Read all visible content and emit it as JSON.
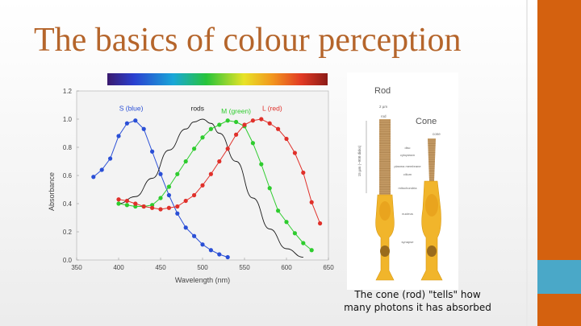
{
  "slide": {
    "title": "The basics of colour perception",
    "caption_line1": "The cone (rod) \"tells\" how",
    "caption_line2": "many photons it has absorbed"
  },
  "colors": {
    "title": "#b5652b",
    "accent_orange": "#d4610f",
    "accent_teal": "#4aa8c8",
    "series_blue": "#2a4fd6",
    "series_green": "#2ecc2e",
    "series_red": "#e0302a",
    "series_black": "#1a1a1a"
  },
  "chart_data": {
    "type": "line",
    "xlabel": "Wavelength (nm)",
    "ylabel": "Absorbance",
    "xlim": [
      350,
      650
    ],
    "ylim": [
      0,
      1.2
    ],
    "x_ticks": [
      350,
      400,
      450,
      500,
      550,
      600,
      650
    ],
    "y_ticks": [
      "0.0",
      "0.2",
      "0.4",
      "0.6",
      "0.8",
      "1.0",
      "1.2"
    ],
    "grid": false,
    "legend": "inline labels",
    "series": [
      {
        "name": "S (blue)",
        "color": "#2a4fd6",
        "points": [
          [
            370,
            0.59
          ],
          [
            380,
            0.64
          ],
          [
            390,
            0.72
          ],
          [
            400,
            0.88
          ],
          [
            410,
            0.97
          ],
          [
            420,
            0.99
          ],
          [
            430,
            0.93
          ],
          [
            440,
            0.77
          ],
          [
            450,
            0.61
          ],
          [
            460,
            0.46
          ],
          [
            470,
            0.33
          ],
          [
            480,
            0.23
          ],
          [
            490,
            0.17
          ],
          [
            500,
            0.11
          ],
          [
            510,
            0.07
          ],
          [
            520,
            0.04
          ],
          [
            530,
            0.02
          ]
        ]
      },
      {
        "name": "rods",
        "color": "#1a1a1a",
        "smooth": true,
        "points": [
          [
            400,
            0.4
          ],
          [
            420,
            0.45
          ],
          [
            440,
            0.58
          ],
          [
            460,
            0.78
          ],
          [
            480,
            0.93
          ],
          [
            490,
            0.98
          ],
          [
            500,
            1.0
          ],
          [
            510,
            0.97
          ],
          [
            520,
            0.9
          ],
          [
            540,
            0.7
          ],
          [
            560,
            0.44
          ],
          [
            580,
            0.22
          ],
          [
            600,
            0.08
          ],
          [
            620,
            0.02
          ]
        ]
      },
      {
        "name": "M (green)",
        "color": "#2ecc2e",
        "points": [
          [
            400,
            0.4
          ],
          [
            410,
            0.39
          ],
          [
            420,
            0.38
          ],
          [
            430,
            0.38
          ],
          [
            440,
            0.39
          ],
          [
            450,
            0.44
          ],
          [
            460,
            0.52
          ],
          [
            470,
            0.61
          ],
          [
            480,
            0.7
          ],
          [
            490,
            0.79
          ],
          [
            500,
            0.87
          ],
          [
            510,
            0.93
          ],
          [
            520,
            0.96
          ],
          [
            530,
            0.99
          ],
          [
            540,
            0.98
          ],
          [
            550,
            0.95
          ],
          [
            560,
            0.83
          ],
          [
            570,
            0.68
          ],
          [
            580,
            0.51
          ],
          [
            590,
            0.35
          ],
          [
            600,
            0.27
          ],
          [
            610,
            0.19
          ],
          [
            620,
            0.12
          ],
          [
            630,
            0.07
          ]
        ]
      },
      {
        "name": "L (red)",
        "color": "#e0302a",
        "points": [
          [
            400,
            0.43
          ],
          [
            410,
            0.42
          ],
          [
            420,
            0.4
          ],
          [
            430,
            0.38
          ],
          [
            440,
            0.37
          ],
          [
            450,
            0.36
          ],
          [
            460,
            0.37
          ],
          [
            470,
            0.38
          ],
          [
            480,
            0.42
          ],
          [
            490,
            0.46
          ],
          [
            500,
            0.53
          ],
          [
            510,
            0.61
          ],
          [
            520,
            0.7
          ],
          [
            530,
            0.79
          ],
          [
            540,
            0.89
          ],
          [
            550,
            0.96
          ],
          [
            560,
            0.99
          ],
          [
            570,
            1.0
          ],
          [
            580,
            0.97
          ],
          [
            590,
            0.93
          ],
          [
            600,
            0.86
          ],
          [
            610,
            0.76
          ],
          [
            620,
            0.62
          ],
          [
            630,
            0.41
          ],
          [
            640,
            0.26
          ]
        ]
      }
    ],
    "labels": [
      {
        "text": "S (blue)",
        "x": 415,
        "y": 1.06
      },
      {
        "text": "rods",
        "x": 494,
        "y": 1.06
      },
      {
        "text": "M (green)",
        "x": 540,
        "y": 1.04
      },
      {
        "text": "L (red)",
        "x": 583,
        "y": 1.06
      }
    ]
  },
  "diagram": {
    "rod_title": "Rod",
    "cone_title": "Cone",
    "rod_width": "2 µm",
    "rod_label": "rod",
    "scale_label": "15 µm (~908 disks)",
    "cone_label": "cone",
    "parts": [
      "disc",
      "cytoplasm",
      "plasma membrane",
      "cilium",
      "mitochondria",
      "nucleus",
      "synapse"
    ]
  }
}
